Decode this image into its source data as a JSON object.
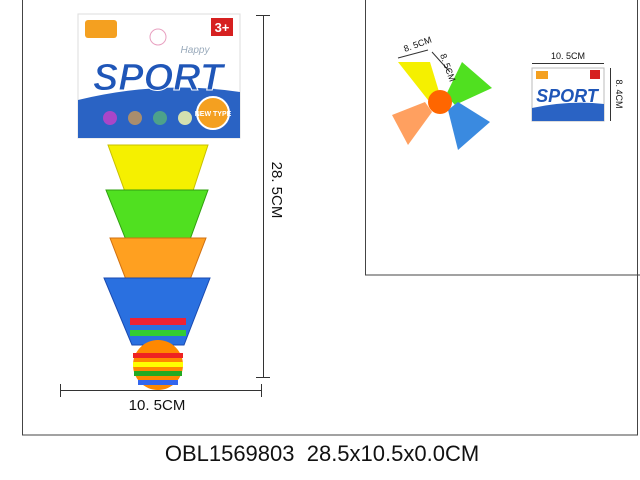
{
  "package": {
    "brand": "Happy",
    "title": "SPORT",
    "age": "3+",
    "badge": "NEW TYPE"
  },
  "dimensions": {
    "height": "28. 5CM",
    "width": "10. 5CM"
  },
  "inset": {
    "shuttle_a": "8. 5CM",
    "shuttle_b": "8. 5CM",
    "pack_width": "10. 5CM",
    "pack_height": "8. 4CM",
    "pack_title": "SPORT"
  },
  "caption": "OBL1569803  28.5x10.5x0.0CM"
}
